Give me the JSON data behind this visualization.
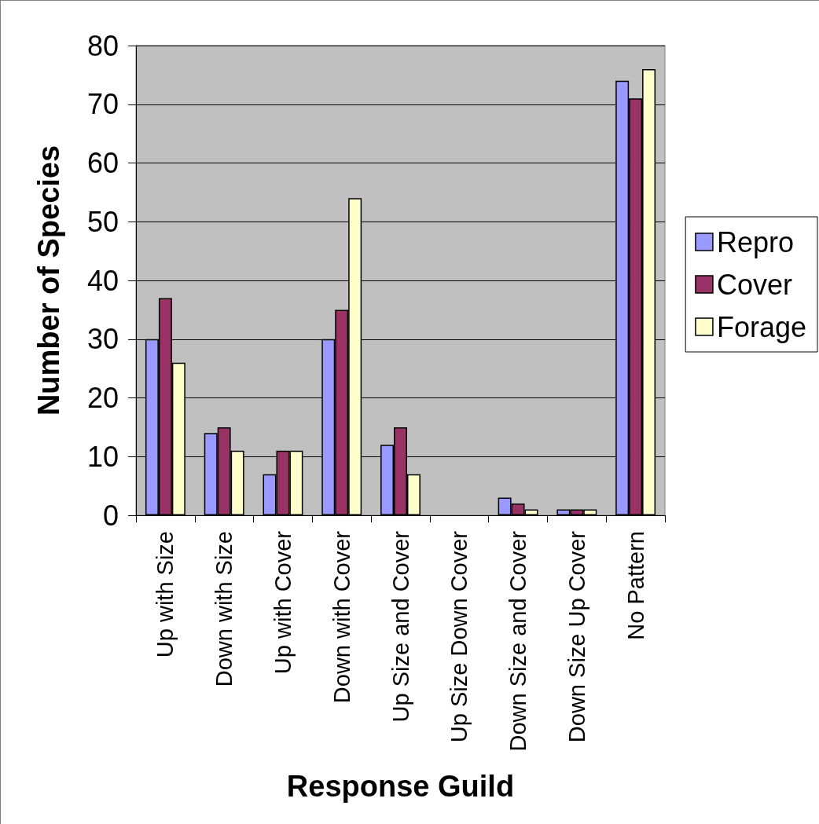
{
  "chart_data": {
    "type": "bar",
    "xlabel": "Response Guild",
    "ylabel": "Number of Species",
    "categories": [
      "Up with Size",
      "Down with Size",
      "Up with Cover",
      "Down with Cover",
      "Up Size and Cover",
      "Up Size Down Cover",
      "Down Size and Cover",
      "Down Size Up Cover",
      "No Pattern"
    ],
    "series": [
      {
        "name": "Repro",
        "color": "#9999ff",
        "values": [
          30,
          14,
          7,
          30,
          12,
          0,
          3,
          1,
          74
        ]
      },
      {
        "name": "Cover",
        "color": "#993366",
        "values": [
          37,
          15,
          11,
          35,
          15,
          0,
          2,
          1,
          71
        ]
      },
      {
        "name": "Forage",
        "color": "#ffffcc",
        "values": [
          26,
          11,
          11,
          54,
          7,
          0,
          1,
          1,
          76
        ]
      }
    ],
    "ylim": [
      0,
      80
    ],
    "yticks": [
      0,
      10,
      20,
      30,
      40,
      50,
      60,
      70,
      80
    ],
    "grid": "y",
    "legend": "right"
  }
}
